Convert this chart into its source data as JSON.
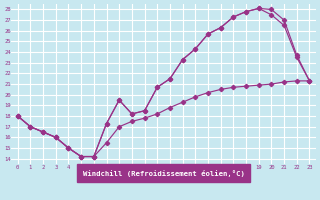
{
  "title": "",
  "xlabel": "Windchill (Refroidissement éolien,°C)",
  "bg_color": "#c8e8f0",
  "grid_color": "#ffffff",
  "line_color": "#993388",
  "border_color": "#993388",
  "xlim": [
    -0.5,
    23.5
  ],
  "ylim": [
    13.5,
    28.5
  ],
  "xticks": [
    0,
    1,
    2,
    3,
    4,
    5,
    6,
    7,
    8,
    9,
    10,
    11,
    12,
    13,
    14,
    15,
    16,
    17,
    18,
    19,
    20,
    21,
    22,
    23
  ],
  "yticks": [
    14,
    15,
    16,
    17,
    18,
    19,
    20,
    21,
    22,
    23,
    24,
    25,
    26,
    27,
    28
  ],
  "curve_upper_x": [
    0,
    1,
    2,
    3,
    4,
    5,
    6,
    7,
    8,
    9,
    10,
    11,
    12,
    13,
    14,
    15,
    16,
    17,
    18,
    19,
    20,
    21,
    22,
    23
  ],
  "curve_upper_y": [
    18,
    17,
    16.5,
    16,
    15,
    14.2,
    14.2,
    17.3,
    19.5,
    18.2,
    18.5,
    20.7,
    21.5,
    23.3,
    24.3,
    25.7,
    26.3,
    27.3,
    27.8,
    28.1,
    28.0,
    27.0,
    23.7,
    21.3
  ],
  "curve_lower_x": [
    0,
    1,
    2,
    3,
    4,
    5,
    6,
    7,
    8,
    9,
    10,
    11,
    12,
    13,
    14,
    15,
    16,
    17,
    18,
    19,
    20,
    21,
    22,
    23
  ],
  "curve_lower_y": [
    18,
    17,
    16.5,
    16,
    15,
    14.2,
    14.2,
    15.5,
    17.0,
    17.5,
    17.8,
    18.2,
    18.8,
    19.3,
    19.8,
    20.2,
    20.5,
    20.7,
    20.8,
    20.9,
    21.0,
    21.2,
    21.3,
    21.3
  ],
  "curve_mid_x": [
    0,
    1,
    2,
    3,
    4,
    5,
    6,
    7,
    8,
    9,
    10,
    11,
    12,
    13,
    14,
    15,
    16,
    17,
    18,
    19,
    20,
    21,
    22,
    23
  ],
  "curve_mid_y": [
    18,
    17,
    16.5,
    16,
    15,
    14.2,
    14.2,
    17.3,
    19.5,
    18.2,
    18.5,
    20.7,
    21.5,
    23.3,
    24.3,
    25.7,
    26.3,
    27.3,
    27.8,
    28.1,
    27.5,
    26.5,
    23.5,
    21.3
  ]
}
